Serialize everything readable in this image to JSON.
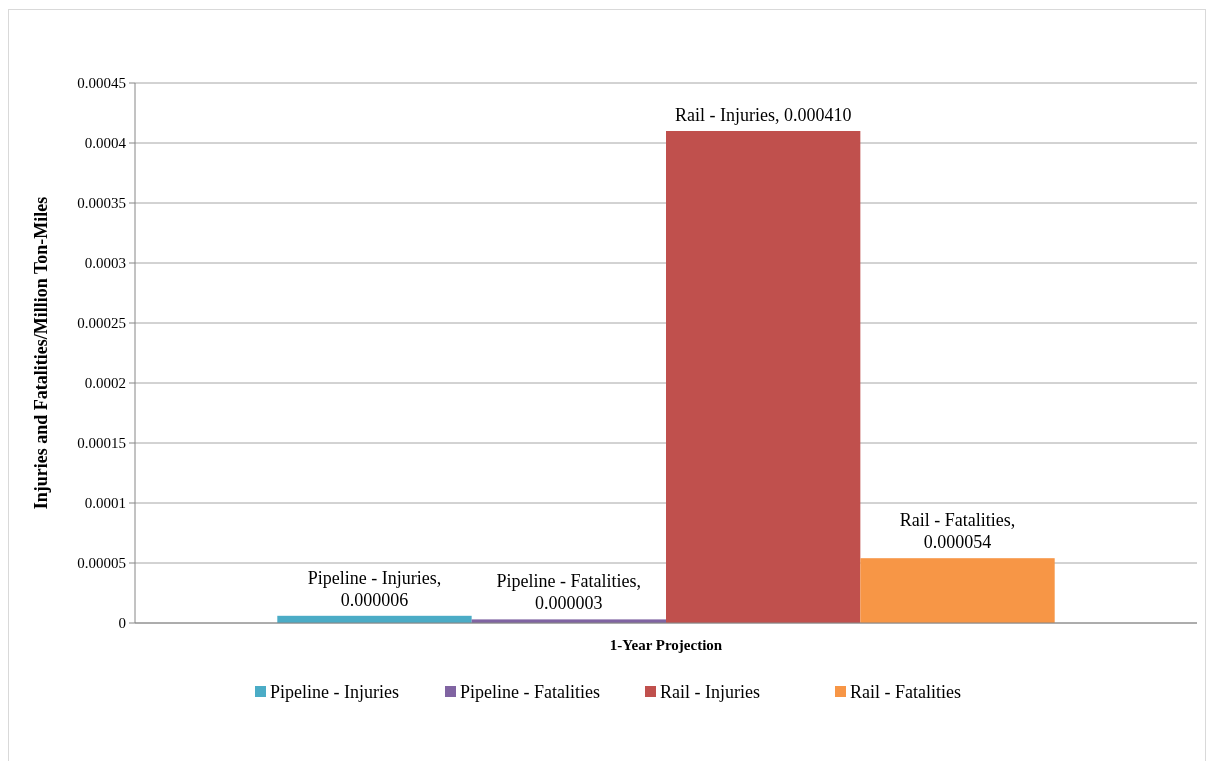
{
  "chart_data": {
    "type": "bar",
    "ylabel": "Injuries and Fatalities/Million Ton-Miles",
    "categories": [
      "1-Year Projection"
    ],
    "series": [
      {
        "name": "Pipeline - Injuries",
        "color": "#4bacc6",
        "values": [
          6e-06
        ],
        "value_labels": [
          "Pipeline - Injuries, 0.000006"
        ]
      },
      {
        "name": "Pipeline - Fatalities",
        "color": "#8064a2",
        "values": [
          3e-06
        ],
        "value_labels": [
          "Pipeline - Fatalities, 0.000003"
        ]
      },
      {
        "name": "Rail - Injuries",
        "color": "#c0504d",
        "values": [
          0.00041
        ],
        "value_labels": [
          "Rail - Injuries, 0.000410"
        ]
      },
      {
        "name": "Rail - Fatalities",
        "color": "#f79646",
        "values": [
          5.4e-05
        ],
        "value_labels": [
          "Rail - Fatalities, 0.000054"
        ]
      }
    ],
    "ylim": [
      0,
      0.00045
    ],
    "yticks": [
      0,
      {
        "value": 5e-05,
        "label": "0.00005"
      },
      0.0001,
      0.00015,
      0.0002,
      0.00025,
      0.0003,
      0.00035,
      0.0004,
      0.00045
    ],
    "grid": "y",
    "legend": "bottom"
  }
}
